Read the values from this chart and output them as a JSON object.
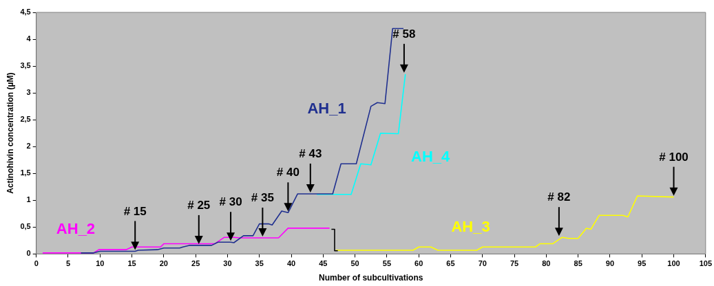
{
  "chart_data": {
    "type": "line",
    "xlabel": "Number of subcultivations",
    "ylabel": "Actinohivin concentration (µM)",
    "xlim": [
      0,
      105
    ],
    "xticks": [
      0,
      5,
      10,
      15,
      20,
      25,
      30,
      35,
      40,
      45,
      50,
      55,
      60,
      65,
      70,
      75,
      80,
      85,
      90,
      95,
      100,
      105
    ],
    "ylim": [
      0,
      4.5
    ],
    "yticks": [
      0,
      {
        "value": 0.5,
        "label": "0,5"
      },
      1,
      {
        "value": 1.5,
        "label": "1,5"
      },
      2,
      {
        "value": 2.5,
        "label": "2,5"
      },
      3,
      {
        "value": 3.5,
        "label": "3,5"
      },
      4,
      {
        "value": 4.5,
        "label": "4,5"
      }
    ],
    "grid": false,
    "legend": false,
    "marker": "none",
    "line_style": "solid",
    "series": [
      {
        "name": "AH_1",
        "color": "#1f2f8f",
        "x": [
          7,
          9,
          10,
          15.5,
          16,
          19,
          20,
          22.5,
          23,
          24,
          27.5,
          28.5,
          30.5,
          31,
          32.5,
          34,
          35,
          36.5,
          37,
          38.5,
          39.5,
          41,
          46.5,
          47.8,
          50.2,
          52.5,
          53.5,
          54.7,
          55.9,
          57.6
        ],
        "values": [
          0.02,
          0.02,
          0.05,
          0.05,
          0.07,
          0.08,
          0.11,
          0.11,
          0.13,
          0.16,
          0.16,
          0.22,
          0.22,
          0.21,
          0.34,
          0.34,
          0.56,
          0.56,
          0.54,
          0.8,
          0.77,
          1.12,
          1.12,
          1.68,
          1.68,
          2.75,
          2.82,
          2.8,
          4.2,
          4.2
        ]
      },
      {
        "name": "AH_2",
        "color": "#ff00ff",
        "x": [
          1,
          9,
          9.8,
          14.1,
          15,
          19.5,
          20,
          28,
          29.5,
          31,
          32,
          38,
          39.5,
          46
        ],
        "values": [
          0.02,
          0.02,
          0.08,
          0.08,
          0.13,
          0.13,
          0.19,
          0.19,
          0.31,
          0.31,
          0.3,
          0.3,
          0.48,
          0.48
        ]
      },
      {
        "color": "#000000",
        "x": [
          46.3,
          46.8,
          46.8,
          47.3
        ],
        "values": [
          0.46,
          0.46,
          0.06,
          0.06
        ]
      },
      {
        "name": "AH_3",
        "color": "#ffff00",
        "x": [
          47,
          59.1,
          60,
          61.9,
          63,
          69.1,
          70,
          78.3,
          79,
          81,
          82.5,
          83.5,
          85,
          86.3,
          87,
          88.3,
          92,
          92.8,
          94.3,
          100
        ],
        "values": [
          0.07,
          0.07,
          0.13,
          0.13,
          0.07,
          0.07,
          0.13,
          0.13,
          0.19,
          0.19,
          0.31,
          0.29,
          0.29,
          0.48,
          0.46,
          0.72,
          0.72,
          0.69,
          1.08,
          1.06
        ]
      },
      {
        "name": "AH_4",
        "color": "#00ffff",
        "x": [
          44,
          49.4,
          50.9,
          52.5,
          54,
          56.8,
          57.9
        ],
        "values": [
          1.11,
          1.11,
          1.68,
          1.66,
          2.25,
          2.24,
          3.35
        ]
      }
    ],
    "annotations": [
      {
        "text": "# 15",
        "x": 15.5,
        "y": 0.05
      },
      {
        "text": "# 25",
        "x": 25.5,
        "y": 0.16
      },
      {
        "text": "# 30",
        "x": 30.5,
        "y": 0.22
      },
      {
        "text": "# 35",
        "x": 35.5,
        "y": 0.3
      },
      {
        "text": "# 40",
        "x": 39.5,
        "y": 0.77
      },
      {
        "text": "# 43",
        "x": 43,
        "y": 1.12
      },
      {
        "text": "# 58",
        "x": 57.7,
        "y": 3.35
      },
      {
        "text": "# 82",
        "x": 82,
        "y": 0.31
      },
      {
        "text": "# 100",
        "x": 100,
        "y": 1.06
      }
    ]
  }
}
